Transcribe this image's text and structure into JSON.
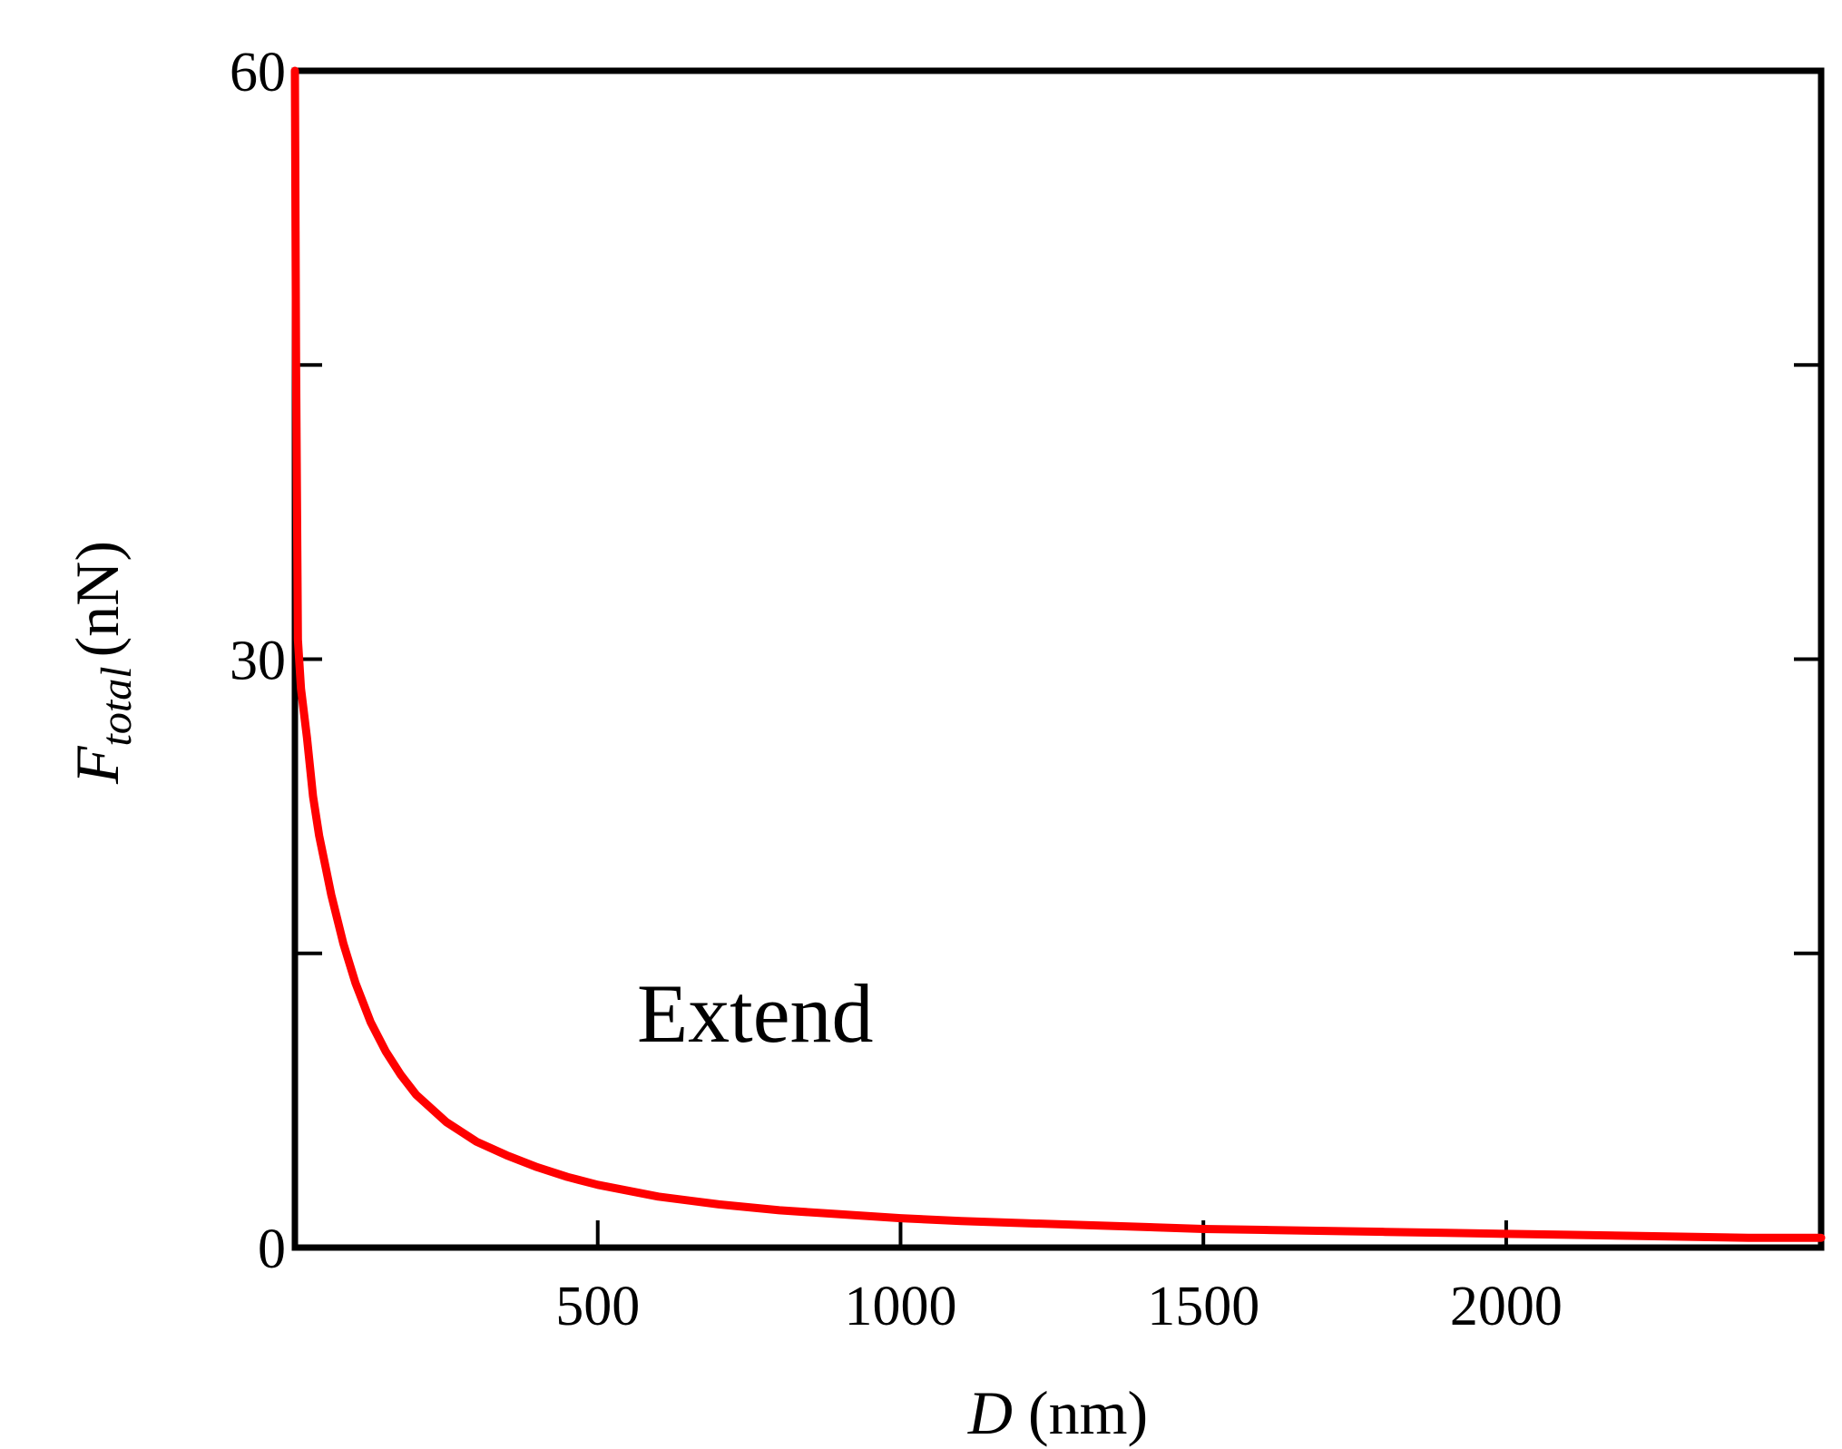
{
  "chart_data": {
    "type": "line",
    "title": "",
    "xlabel": {
      "symbol": "D",
      "unit": "(nm)"
    },
    "ylabel": {
      "symbol": "F",
      "subscript": "total",
      "unit": "(nN)"
    },
    "xlim": [
      0,
      2520
    ],
    "ylim": [
      0,
      60
    ],
    "xticks": [
      500,
      1000,
      1500,
      2000
    ],
    "xtick_labels": [
      "500",
      "1000",
      "1500",
      "2000"
    ],
    "yticks": [
      0,
      15,
      30,
      45,
      60
    ],
    "ytick_labels": [
      "0",
      "",
      "30",
      "",
      "60"
    ],
    "grid": false,
    "legend": null,
    "annotations": [
      {
        "text": "Extend",
        "x": 760,
        "y": 10.5
      }
    ],
    "series": [
      {
        "color": "#ff0000",
        "x": [
          0,
          2,
          5,
          10,
          20,
          30,
          40,
          50,
          60,
          80,
          100,
          125,
          150,
          175,
          200,
          250,
          300,
          350,
          400,
          450,
          500,
          600,
          700,
          800,
          900,
          1000,
          1100,
          1200,
          1300,
          1400,
          1500,
          1600,
          1700,
          1800,
          1900,
          2000,
          2100,
          2200,
          2300,
          2400,
          2520
        ],
        "y": [
          60,
          45,
          31,
          28.5,
          26,
          23,
          21,
          19.5,
          18,
          15.5,
          13.5,
          11.5,
          10,
          8.8,
          7.8,
          6.4,
          5.4,
          4.7,
          4.1,
          3.6,
          3.2,
          2.6,
          2.2,
          1.9,
          1.7,
          1.5,
          1.35,
          1.25,
          1.15,
          1.05,
          0.95,
          0.9,
          0.85,
          0.8,
          0.75,
          0.7,
          0.65,
          0.6,
          0.55,
          0.5,
          0.5
        ]
      }
    ]
  }
}
